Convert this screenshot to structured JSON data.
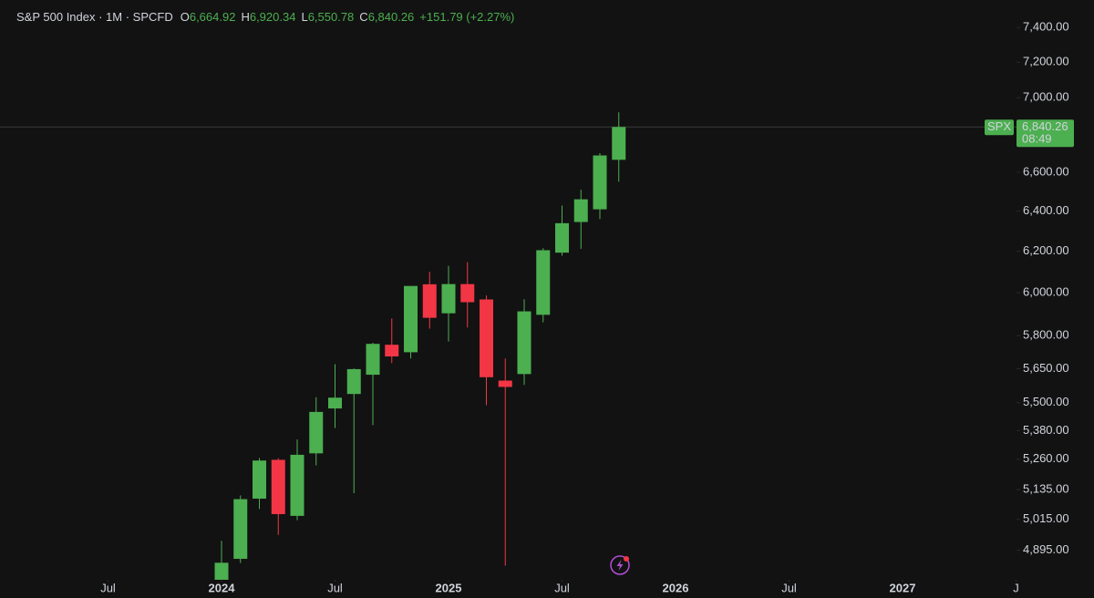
{
  "chart_data": {
    "type": "candlestick",
    "header": {
      "title": "S&P 500 Index · 1M · SPCFD",
      "ohlc": [
        {
          "label": "O",
          "value": "6,664.92"
        },
        {
          "label": "H",
          "value": "6,920.34"
        },
        {
          "label": "L",
          "value": "6,550.78"
        },
        {
          "label": "C",
          "value": "6,840.26"
        }
      ],
      "change": "+151.79 (+2.27%)"
    },
    "x": [
      "2024-01",
      "2024-02",
      "2024-03",
      "2024-04",
      "2024-05",
      "2024-06",
      "2024-07",
      "2024-08",
      "2024-09",
      "2024-10",
      "2024-11",
      "2024-12",
      "2025-01",
      "2025-02",
      "2025-03",
      "2025-04",
      "2025-05",
      "2025-06",
      "2025-07",
      "2025-08",
      "2025-09",
      "2025-10"
    ],
    "open": [
      4745,
      4861,
      5098,
      5257,
      5029,
      5284,
      5475,
      5538,
      5623,
      5758,
      5724,
      6040,
      5903,
      6041,
      5968,
      5597,
      5626,
      5896,
      6193,
      6345,
      6409,
      6664.92
    ],
    "high": [
      4931,
      5111,
      5265,
      5264,
      5342,
      5524,
      5670,
      5651,
      5767,
      5879,
      6025,
      6100,
      6129,
      6147,
      5987,
      5696,
      5969,
      6215,
      6428,
      6509,
      6700,
      6920.34
    ],
    "low": [
      4682,
      4845,
      5057,
      4954,
      5012,
      5234,
      5391,
      5120,
      5403,
      5675,
      5696,
      5832,
      5773,
      5837,
      5489,
      4835,
      5578,
      5861,
      6178,
      6212,
      6360,
      6550.78
    ],
    "close": [
      4846,
      5096,
      5254,
      5036,
      5278,
      5460,
      5522,
      5648,
      5762,
      5705,
      6032,
      5882,
      6041,
      5955,
      5612,
      5569,
      5912,
      6205,
      6339,
      6460,
      6688,
      6840.26
    ],
    "up_color": "#4caf50",
    "down_color": "#f23645",
    "xlim": [
      "2023-01",
      "2027-08"
    ],
    "xticks": [
      {
        "value": "2023-07",
        "label": "Jul"
      },
      {
        "value": "2024-01",
        "label": "2024"
      },
      {
        "value": "2024-07",
        "label": "Jul"
      },
      {
        "value": "2025-01",
        "label": "2025"
      },
      {
        "value": "2025-07",
        "label": "Jul"
      },
      {
        "value": "2026-01",
        "label": "2026"
      },
      {
        "value": "2026-07",
        "label": "Jul"
      },
      {
        "value": "2027-01",
        "label": "2027"
      },
      {
        "value": "2027-07",
        "label": "J"
      }
    ],
    "ylim": [
      4795,
      7563
    ],
    "log_scale": true,
    "grid": false,
    "yticks": [
      {
        "value": 4895,
        "label": "4,895.00"
      },
      {
        "value": 5015,
        "label": "5,015.00"
      },
      {
        "value": 5135,
        "label": "5,135.00"
      },
      {
        "value": 5260,
        "label": "5,260.00"
      },
      {
        "value": 5380,
        "label": "5,380.00"
      },
      {
        "value": 5500,
        "label": "5,500.00"
      },
      {
        "value": 5650,
        "label": "5,650.00"
      },
      {
        "value": 5800,
        "label": "5,800.00"
      },
      {
        "value": 6000,
        "label": "6,000.00"
      },
      {
        "value": 6200,
        "label": "6,200.00"
      },
      {
        "value": 6400,
        "label": "6,400.00"
      },
      {
        "value": 6600,
        "label": "6,600.00"
      },
      {
        "value": 7000,
        "label": "7,000.00"
      },
      {
        "value": 7200,
        "label": "7,200.00"
      },
      {
        "value": 7400,
        "label": "7,400.00"
      }
    ],
    "price_line": {
      "symbol": "SPX",
      "value": 6840.26,
      "label": "6,840.26",
      "countdown": "08:49",
      "color": "#4caf50"
    }
  }
}
